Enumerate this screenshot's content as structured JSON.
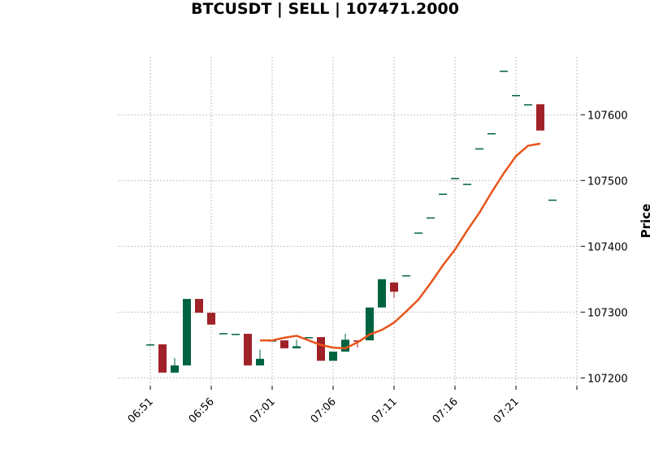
{
  "chart_data": {
    "type": "candlestick",
    "title": "BTCUSDT | SELL | 107471.2000",
    "ylabel": "Price",
    "xlabel": "",
    "ylim": [
      107188,
      107688
    ],
    "y_ticks": [
      107200,
      107300,
      107400,
      107500,
      107600
    ],
    "y_tick_labels": [
      "107200",
      "107300",
      "107400",
      "107500",
      "107600"
    ],
    "x_tick_labels": [
      "06:51",
      "06:56",
      "07:01",
      "07:06",
      "07:11",
      "07:16",
      "07:21",
      ""
    ],
    "grid": true,
    "colors": {
      "up": "#006340",
      "down": "#a02128",
      "line": "#e8541a",
      "grid": "#b0b0b0"
    },
    "candles": [
      {
        "time": "06:51",
        "open": 107251,
        "high": 107251,
        "low": 107251,
        "close": 107251
      },
      {
        "time": "06:52",
        "open": 107251,
        "high": 107251,
        "low": 107208,
        "close": 107208
      },
      {
        "time": "06:53",
        "open": 107208,
        "high": 107230,
        "low": 107208,
        "close": 107219
      },
      {
        "time": "06:54",
        "open": 107219,
        "high": 107320,
        "low": 107219,
        "close": 107320
      },
      {
        "time": "06:55",
        "open": 107320,
        "high": 107320,
        "low": 107299,
        "close": 107299
      },
      {
        "time": "06:56",
        "open": 107299,
        "high": 107299,
        "low": 107281,
        "close": 107281
      },
      {
        "time": "06:57",
        "open": 107268,
        "high": 107268,
        "low": 107268,
        "close": 107268
      },
      {
        "time": "06:58",
        "open": 107267,
        "high": 107267,
        "low": 107267,
        "close": 107267
      },
      {
        "time": "06:59",
        "open": 107267,
        "high": 107267,
        "low": 107219,
        "close": 107219
      },
      {
        "time": "07:00",
        "open": 107219,
        "high": 107243,
        "low": 107219,
        "close": 107229
      },
      {
        "time": "07:01",
        "open": 107257,
        "high": 107257,
        "low": 107257,
        "close": 107257
      },
      {
        "time": "07:02",
        "open": 107257,
        "high": 107257,
        "low": 107245,
        "close": 107245
      },
      {
        "time": "07:03",
        "open": 107245,
        "high": 107258,
        "low": 107245,
        "close": 107248
      },
      {
        "time": "07:04",
        "open": 107262,
        "high": 107262,
        "low": 107262,
        "close": 107262
      },
      {
        "time": "07:05",
        "open": 107262,
        "high": 107262,
        "low": 107226,
        "close": 107226
      },
      {
        "time": "07:06",
        "open": 107226,
        "high": 107240,
        "low": 107226,
        "close": 107240
      },
      {
        "time": "07:07",
        "open": 107240,
        "high": 107267,
        "low": 107240,
        "close": 107258
      },
      {
        "time": "07:08",
        "open": 107257,
        "high": 107257,
        "low": 107246,
        "close": 107256
      },
      {
        "time": "07:09",
        "open": 107257,
        "high": 107307,
        "low": 107257,
        "close": 107307
      },
      {
        "time": "07:10",
        "open": 107307,
        "high": 107350,
        "low": 107307,
        "close": 107350
      },
      {
        "time": "07:11",
        "open": 107345,
        "high": 107345,
        "low": 107322,
        "close": 107331
      },
      {
        "time": "07:12",
        "open": 107356,
        "high": 107356,
        "low": 107356,
        "close": 107356
      },
      {
        "time": "07:13",
        "open": 107421,
        "high": 107421,
        "low": 107421,
        "close": 107421
      },
      {
        "time": "07:14",
        "open": 107444,
        "high": 107444,
        "low": 107444,
        "close": 107444
      },
      {
        "time": "07:15",
        "open": 107480,
        "high": 107480,
        "low": 107480,
        "close": 107480
      },
      {
        "time": "07:16",
        "open": 107504,
        "high": 107504,
        "low": 107504,
        "close": 107504
      },
      {
        "time": "07:17",
        "open": 107495,
        "high": 107495,
        "low": 107495,
        "close": 107495
      },
      {
        "time": "07:18",
        "open": 107549,
        "high": 107549,
        "low": 107549,
        "close": 107549
      },
      {
        "time": "07:19",
        "open": 107572,
        "high": 107572,
        "low": 107572,
        "close": 107572
      },
      {
        "time": "07:20",
        "open": 107667,
        "high": 107667,
        "low": 107667,
        "close": 107667
      },
      {
        "time": "07:21",
        "open": 107630,
        "high": 107630,
        "low": 107630,
        "close": 107630
      },
      {
        "time": "07:22",
        "open": 107616,
        "high": 107616,
        "low": 107616,
        "close": 107616
      },
      {
        "time": "07:23",
        "open": 107616,
        "high": 107616,
        "low": 107576,
        "close": 107576
      },
      {
        "time": "07:24",
        "open": 107471,
        "high": 107471,
        "low": 107471,
        "close": 107471
      }
    ],
    "moving_average": {
      "start_index": 9,
      "values": [
        107257,
        107257,
        107261,
        107264,
        107257,
        107250,
        107246,
        107245,
        107254,
        107266,
        107273,
        107284,
        107301,
        107319,
        107344,
        107371,
        107395,
        107424,
        107451,
        107482,
        107511,
        107537,
        107553,
        107556
      ]
    }
  }
}
